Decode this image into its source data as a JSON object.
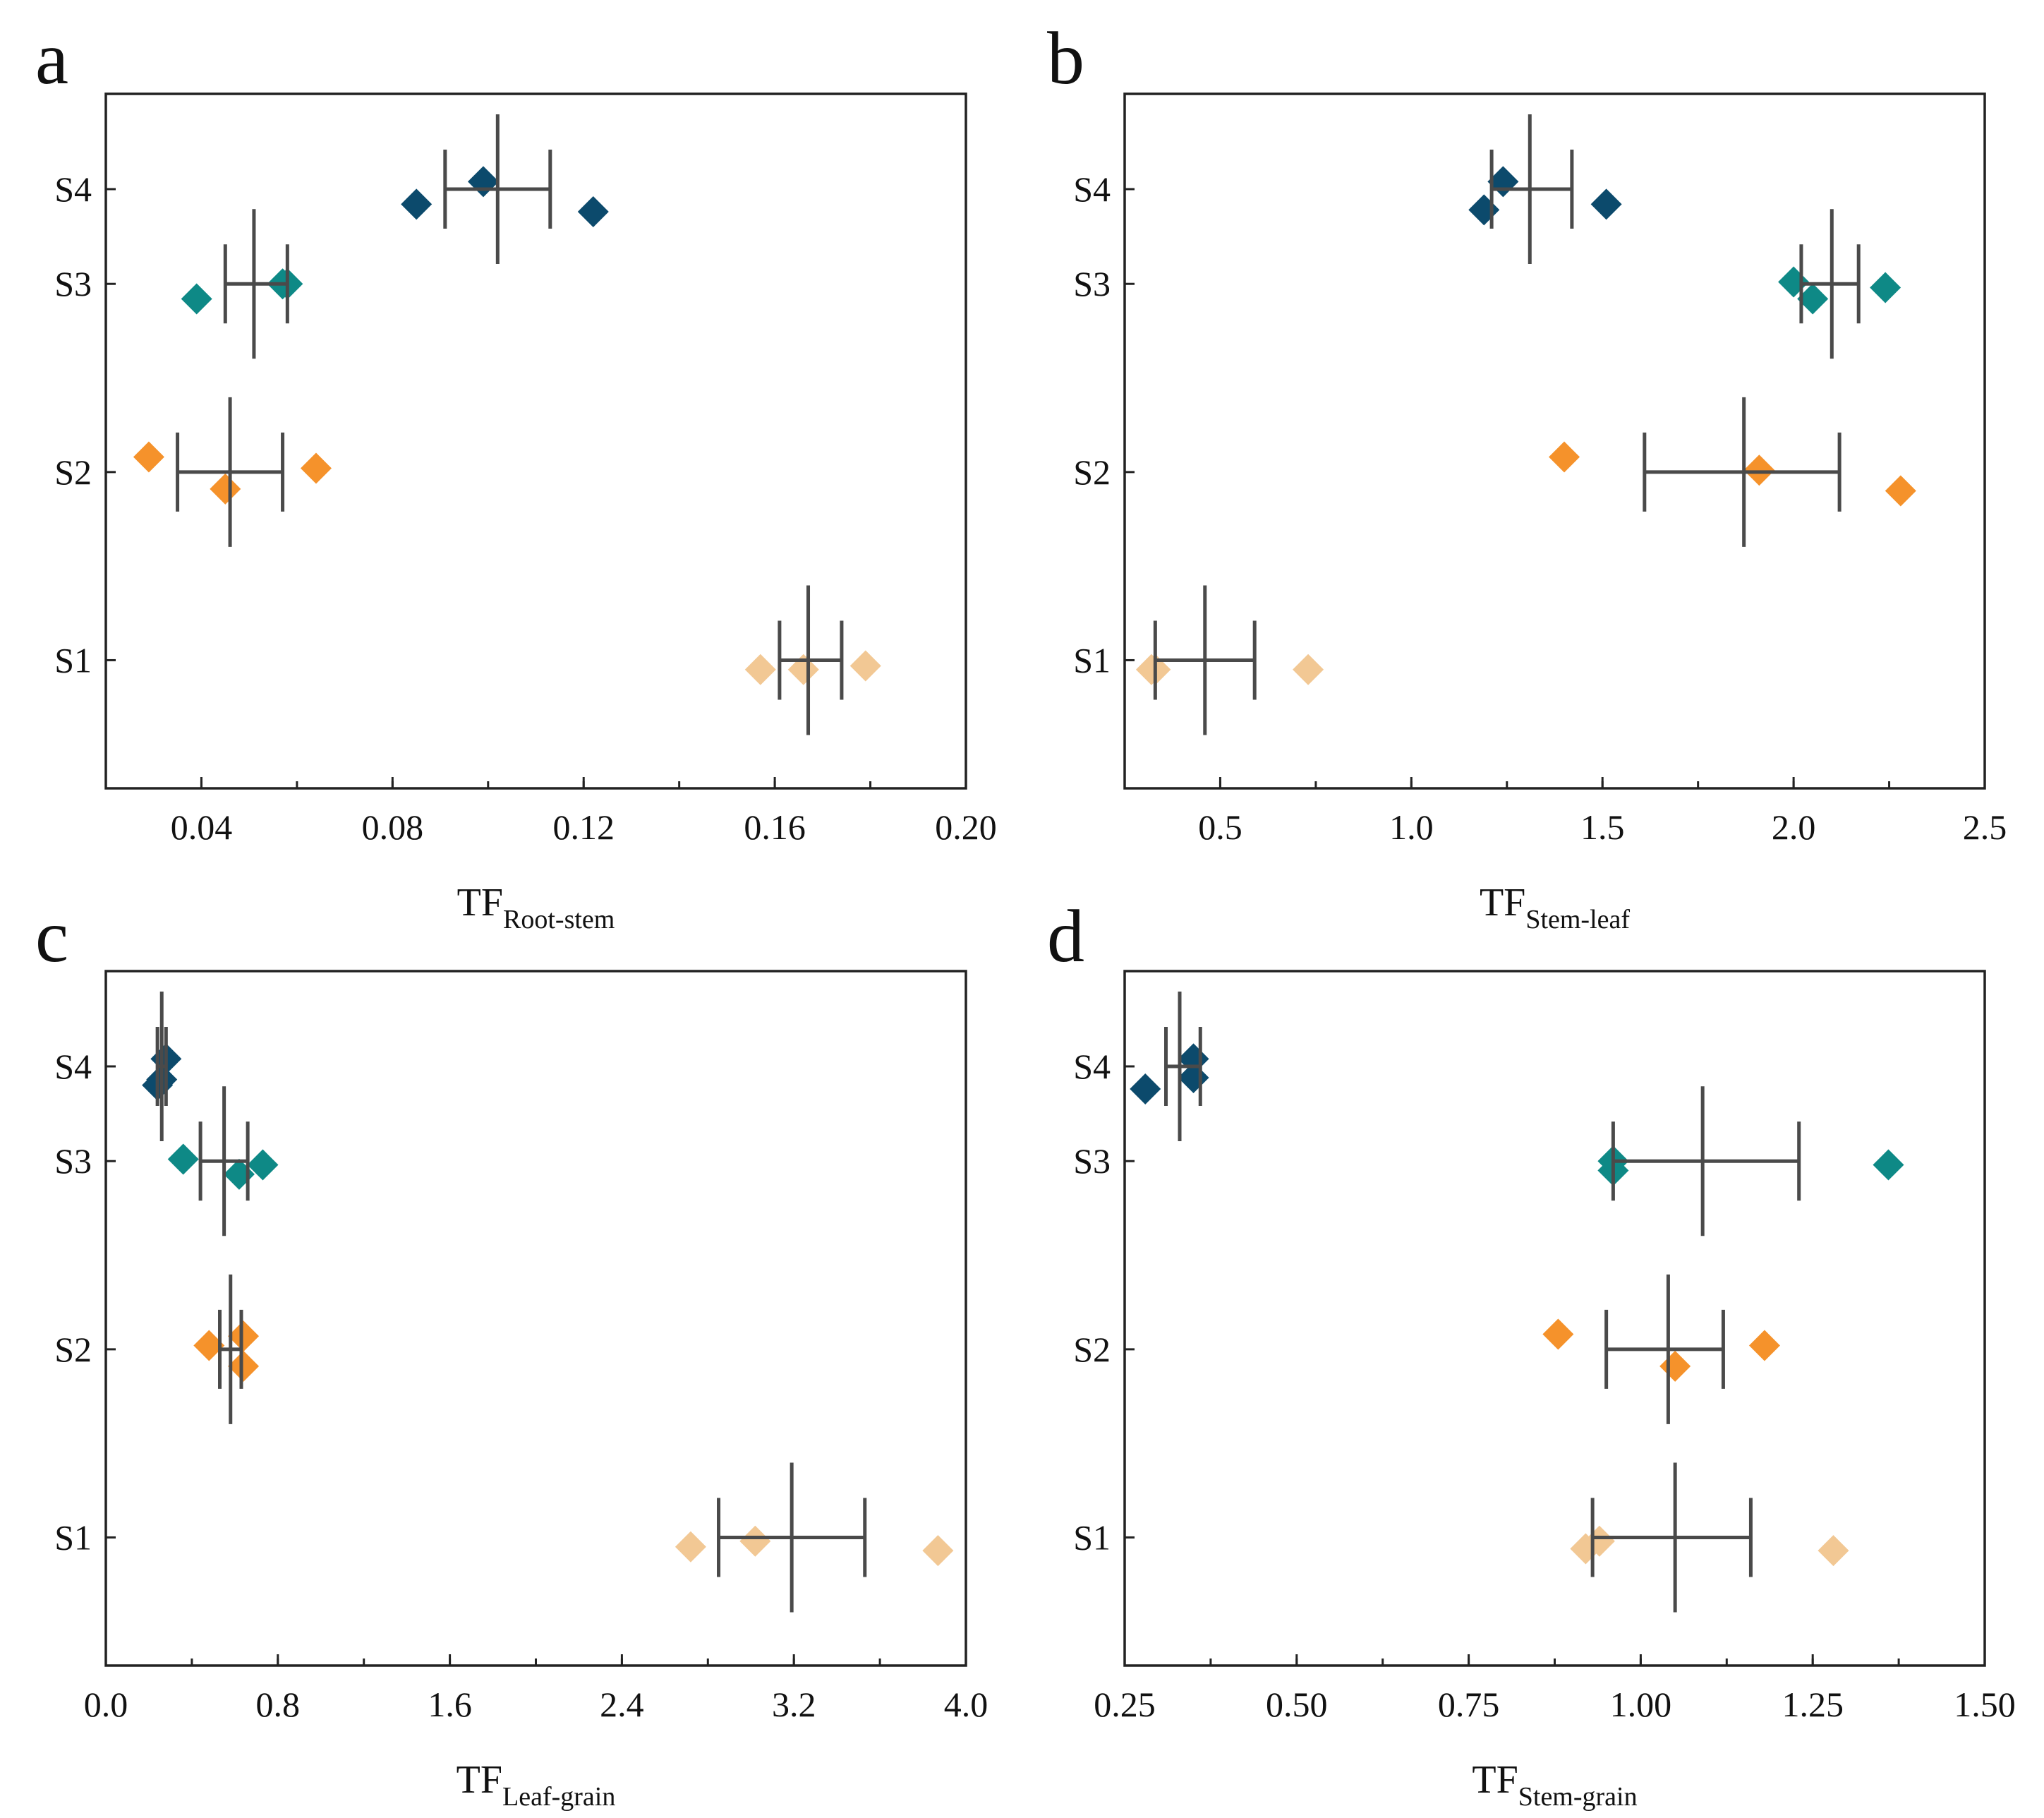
{
  "chart_data": [
    {
      "type": "scatter",
      "panel": "a",
      "xlabel_main": "TF",
      "xlabel_sub": "Root-stem",
      "categories": [
        "S1",
        "S2",
        "S3",
        "S4"
      ],
      "xlim": [
        0.02,
        0.2
      ],
      "xticks": [
        0.04,
        0.08,
        0.12,
        0.16,
        0.2
      ],
      "xtick_labels": [
        "0.04",
        "0.08",
        "0.12",
        "0.16",
        "0.20"
      ],
      "series": [
        {
          "name": "S1",
          "color": "#F2C894",
          "points": [
            [
              0.157,
              -0.05
            ],
            [
              0.166,
              -0.05
            ],
            [
              0.179,
              -0.03
            ]
          ],
          "mean": 0.167,
          "err": [
            0.161,
            0.174
          ]
        },
        {
          "name": "S2",
          "color": "#F5922B",
          "points": [
            [
              0.029,
              0.08
            ],
            [
              0.045,
              -0.09
            ],
            [
              0.064,
              0.02
            ]
          ],
          "mean": 0.046,
          "err": [
            0.035,
            0.057
          ]
        },
        {
          "name": "S3",
          "color": "#0E8986",
          "points": [
            [
              0.039,
              -0.08
            ],
            [
              0.058,
              0.0
            ],
            [
              0.057,
              0.0
            ]
          ],
          "mean": 0.051,
          "err": [
            0.045,
            0.058
          ]
        },
        {
          "name": "S4",
          "color": "#0C4A6C",
          "points": [
            [
              0.085,
              -0.08
            ],
            [
              0.099,
              0.04
            ],
            [
              0.122,
              -0.12
            ]
          ],
          "mean": 0.102,
          "err": [
            0.091,
            0.113
          ]
        }
      ]
    },
    {
      "type": "scatter",
      "panel": "b",
      "xlabel_main": "TF",
      "xlabel_sub": "Stem-leaf",
      "categories": [
        "S1",
        "S2",
        "S3",
        "S4"
      ],
      "xlim": [
        0.25,
        2.5
      ],
      "xticks": [
        0.5,
        1.0,
        1.5,
        2.0,
        2.5
      ],
      "xtick_labels": [
        "0.5",
        "1.0",
        "1.5",
        "2.0",
        "2.5"
      ],
      "series": [
        {
          "name": "S1",
          "color": "#F2C894",
          "points": [
            [
              0.32,
              -0.05
            ],
            [
              0.33,
              -0.05
            ],
            [
              0.73,
              -0.05
            ]
          ],
          "mean": 0.46,
          "err": [
            0.33,
            0.59
          ]
        },
        {
          "name": "S2",
          "color": "#F5922B",
          "points": [
            [
              1.4,
              0.08
            ],
            [
              1.91,
              0.01
            ],
            [
              2.28,
              -0.1
            ]
          ],
          "mean": 1.87,
          "err": [
            1.61,
            2.12
          ]
        },
        {
          "name": "S3",
          "color": "#0E8986",
          "points": [
            [
              2.0,
              0.01
            ],
            [
              2.05,
              -0.08
            ],
            [
              2.24,
              -0.02
            ]
          ],
          "mean": 2.1,
          "err": [
            2.02,
            2.17
          ]
        },
        {
          "name": "S4",
          "color": "#0C4A6C",
          "points": [
            [
              1.19,
              -0.11
            ],
            [
              1.24,
              0.04
            ],
            [
              1.51,
              -0.08
            ]
          ],
          "mean": 1.31,
          "err": [
            1.21,
            1.42
          ]
        }
      ]
    },
    {
      "type": "scatter",
      "panel": "c",
      "xlabel_main": "TF",
      "xlabel_sub": "Leaf-grain",
      "categories": [
        "S1",
        "S2",
        "S3",
        "S4"
      ],
      "xlim": [
        0.0,
        4.0
      ],
      "xticks": [
        0.0,
        0.8,
        1.6,
        2.4,
        3.2,
        4.0
      ],
      "xtick_labels": [
        "0.0",
        "0.8",
        "1.6",
        "2.4",
        "3.2",
        "4.0"
      ],
      "series": [
        {
          "name": "S1",
          "color": "#F2C894",
          "points": [
            [
              2.72,
              -0.05
            ],
            [
              3.02,
              -0.02
            ],
            [
              3.87,
              -0.07
            ]
          ],
          "mean": 3.19,
          "err": [
            2.85,
            3.53
          ]
        },
        {
          "name": "S2",
          "color": "#F5922B",
          "points": [
            [
              0.48,
              0.02
            ],
            [
              0.64,
              0.07
            ],
            [
              0.64,
              -0.09
            ]
          ],
          "mean": 0.58,
          "err": [
            0.53,
            0.63
          ]
        },
        {
          "name": "S3",
          "color": "#0E8986",
          "points": [
            [
              0.36,
              0.01
            ],
            [
              0.62,
              -0.07
            ],
            [
              0.73,
              -0.02
            ]
          ],
          "mean": 0.55,
          "err": [
            0.44,
            0.66
          ]
        },
        {
          "name": "S4",
          "color": "#0C4A6C",
          "points": [
            [
              0.24,
              -0.1
            ],
            [
              0.26,
              -0.07
            ],
            [
              0.28,
              0.04
            ]
          ],
          "mean": 0.26,
          "err": [
            0.24,
            0.28
          ]
        }
      ]
    },
    {
      "type": "scatter",
      "panel": "d",
      "xlabel_main": "TF",
      "xlabel_sub": "Stem-grain",
      "categories": [
        "S1",
        "S2",
        "S3",
        "S4"
      ],
      "xlim": [
        0.25,
        1.5
      ],
      "xticks": [
        0.25,
        0.5,
        0.75,
        1.0,
        1.25,
        1.5
      ],
      "xtick_labels": [
        "0.25",
        "0.50",
        "0.75",
        "1.00",
        "1.25",
        "1.50"
      ],
      "series": [
        {
          "name": "S1",
          "color": "#F2C894",
          "points": [
            [
              0.92,
              -0.06
            ],
            [
              0.94,
              -0.02
            ],
            [
              1.28,
              -0.07
            ]
          ],
          "mean": 1.05,
          "err": [
            0.93,
            1.16
          ]
        },
        {
          "name": "S2",
          "color": "#F5922B",
          "points": [
            [
              0.88,
              0.08
            ],
            [
              1.05,
              -0.09
            ],
            [
              1.18,
              0.02
            ]
          ],
          "mean": 1.04,
          "err": [
            0.95,
            1.12
          ]
        },
        {
          "name": "S3",
          "color": "#0E8986",
          "points": [
            [
              0.96,
              -0.05
            ],
            [
              0.96,
              0.0
            ],
            [
              1.36,
              -0.02
            ]
          ],
          "mean": 1.09,
          "err": [
            0.96,
            1.23
          ]
        },
        {
          "name": "S4",
          "color": "#0C4A6C",
          "points": [
            [
              0.28,
              -0.12
            ],
            [
              0.35,
              0.04
            ],
            [
              0.35,
              -0.06
            ]
          ],
          "mean": 0.33,
          "err": [
            0.31,
            0.36
          ]
        }
      ]
    }
  ]
}
